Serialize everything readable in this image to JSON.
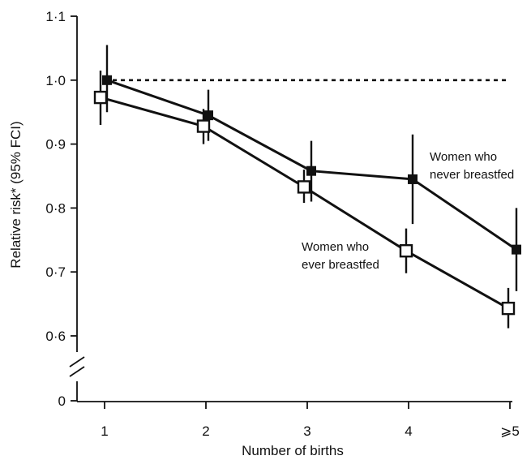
{
  "chart_data": {
    "type": "line",
    "xlabel": "Number of births",
    "ylabel": "Relative risk* (95% FCI)",
    "categories": [
      "1",
      "2",
      "3",
      "4",
      "⩾5"
    ],
    "yticks": [
      "0",
      "0·6",
      "0·7",
      "0·8",
      "0·9",
      "1·0",
      "1·1"
    ],
    "ylim": [
      0.58,
      1.1
    ],
    "y_axis_break": true,
    "reference_line": 1.0,
    "grid": false,
    "series": [
      {
        "name": "Women who never breastfed",
        "marker": "filled-square",
        "values": [
          1.0,
          0.945,
          0.858,
          0.845,
          0.735
        ],
        "ci_low": [
          0.95,
          0.905,
          0.81,
          0.775,
          0.67
        ],
        "ci_high": [
          1.055,
          0.985,
          0.905,
          0.915,
          0.8
        ]
      },
      {
        "name": "Women who ever breastfed",
        "marker": "open-square",
        "values": [
          0.973,
          0.928,
          0.833,
          0.733,
          0.643
        ],
        "ci_low": [
          0.93,
          0.9,
          0.808,
          0.698,
          0.612
        ],
        "ci_high": [
          1.015,
          0.955,
          0.86,
          0.768,
          0.675
        ]
      }
    ],
    "annotations": [
      {
        "series": 0,
        "lines": [
          "Women who",
          "never breastfed"
        ]
      },
      {
        "series": 1,
        "lines": [
          "Women who",
          "ever breastfed"
        ]
      }
    ]
  }
}
